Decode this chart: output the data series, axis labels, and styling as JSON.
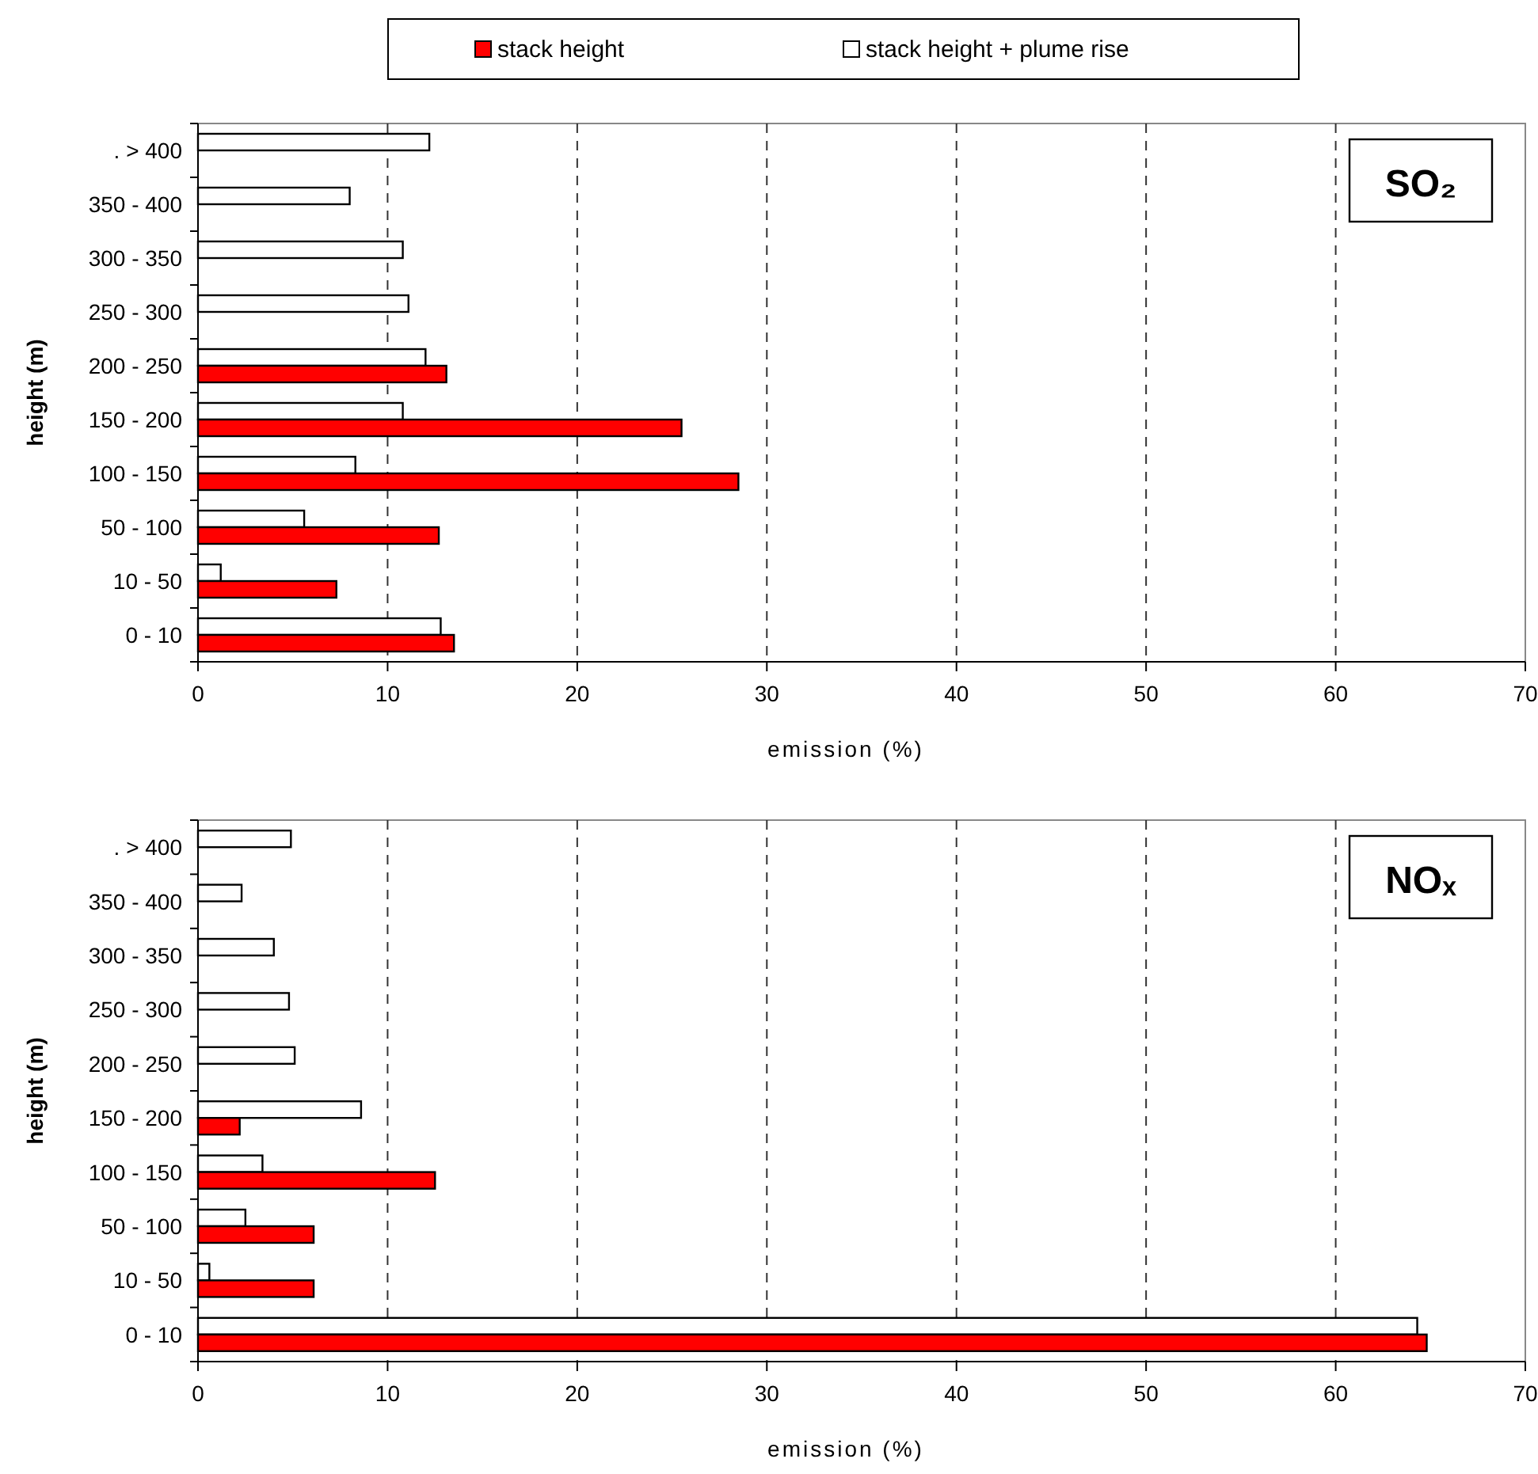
{
  "chart_data": [
    {
      "type": "bar",
      "orientation": "horizontal",
      "title": "SO₂",
      "xlabel": "emission (%)",
      "ylabel": "height (m)",
      "categories": [
        ". > 400",
        "350 - 400",
        "300 - 350",
        "250 - 300",
        "200 - 250",
        "150 - 200",
        "100 - 150",
        "50 - 100",
        "10 - 50",
        "0 - 10"
      ],
      "series": [
        {
          "name": "stack height + plume rise",
          "color": "#ffffff",
          "values": [
            12.2,
            8.0,
            10.8,
            11.1,
            12.0,
            10.8,
            8.3,
            5.6,
            1.2,
            12.8
          ]
        },
        {
          "name": "stack height",
          "color": "#ff0000",
          "values": [
            null,
            null,
            null,
            null,
            13.1,
            25.5,
            28.5,
            12.7,
            7.3,
            13.5
          ]
        }
      ],
      "xlim": [
        0,
        70
      ],
      "xticks": [
        0,
        10,
        20,
        30,
        40,
        50,
        60,
        70
      ],
      "grid": "x",
      "legend": "top"
    },
    {
      "type": "bar",
      "orientation": "horizontal",
      "title": "NOₓ",
      "xlabel": "emission (%)",
      "ylabel": "height (m)",
      "categories": [
        ". > 400",
        "350 - 400",
        "300 - 350",
        "250 - 300",
        "200 - 250",
        "150 - 200",
        "100 - 150",
        "50 - 100",
        "10 - 50",
        "0 - 10"
      ],
      "series": [
        {
          "color": "#ffffff",
          "values": [
            4.9,
            2.3,
            4.0,
            4.8,
            5.1,
            8.6,
            3.4,
            2.5,
            0.6,
            64.3
          ]
        },
        {
          "color": "#ff0000",
          "values": [
            null,
            null,
            null,
            null,
            null,
            2.2,
            12.5,
            6.1,
            6.1,
            64.8
          ]
        }
      ],
      "xlim": [
        0,
        70
      ],
      "xticks": [
        0,
        10,
        20,
        30,
        40,
        50,
        60,
        70
      ],
      "grid": "x"
    }
  ]
}
